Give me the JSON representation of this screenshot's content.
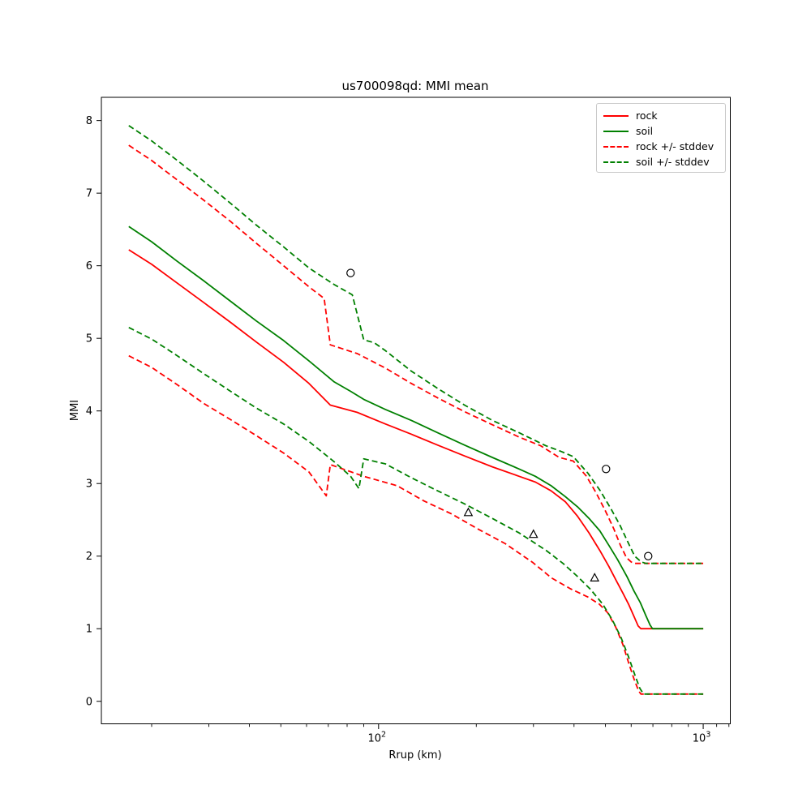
{
  "chart_data": {
    "type": "line",
    "title": "us700098qd: MMI mean",
    "xlabel": "Rrup (km)",
    "ylabel": "MMI",
    "x_scale": "log",
    "xlim": [
      14,
      1212
    ],
    "ylim": [
      -0.31,
      8.32
    ],
    "grid": false,
    "legend_position": "upper right",
    "y_ticks": [
      0,
      1,
      2,
      3,
      4,
      5,
      6,
      7,
      8
    ],
    "x_major_ticks": [
      {
        "value": 100,
        "base": "10",
        "exp": "2"
      },
      {
        "value": 1000,
        "base": "10",
        "exp": "3"
      }
    ],
    "x_minor_ticks": [
      20,
      30,
      40,
      50,
      60,
      70,
      80,
      90,
      200,
      300,
      400,
      500,
      600,
      700,
      800,
      900,
      1100,
      1200
    ],
    "series": [
      {
        "name": "rock",
        "label": "rock",
        "color": "#ff0000",
        "dash": false,
        "points": [
          [
            17,
            6.22
          ],
          [
            20,
            6.02
          ],
          [
            24,
            5.76
          ],
          [
            29,
            5.49
          ],
          [
            35,
            5.22
          ],
          [
            42,
            4.95
          ],
          [
            51,
            4.67
          ],
          [
            61,
            4.38
          ],
          [
            71,
            4.08
          ],
          [
            86,
            3.98
          ],
          [
            105,
            3.82
          ],
          [
            126,
            3.68
          ],
          [
            152,
            3.53
          ],
          [
            184,
            3.38
          ],
          [
            224,
            3.23
          ],
          [
            271,
            3.1
          ],
          [
            304,
            3.02
          ],
          [
            340,
            2.9
          ],
          [
            376,
            2.75
          ],
          [
            410,
            2.55
          ],
          [
            445,
            2.32
          ],
          [
            480,
            2.08
          ],
          [
            512,
            1.86
          ],
          [
            540,
            1.66
          ],
          [
            566,
            1.49
          ],
          [
            590,
            1.33
          ],
          [
            612,
            1.17
          ],
          [
            630,
            1.04
          ],
          [
            643,
            1.0
          ],
          [
            1000,
            1.0
          ]
        ]
      },
      {
        "name": "soil",
        "label": "soil",
        "color": "#008000",
        "dash": false,
        "points": [
          [
            17,
            6.54
          ],
          [
            20,
            6.33
          ],
          [
            24,
            6.06
          ],
          [
            29,
            5.79
          ],
          [
            35,
            5.51
          ],
          [
            42,
            5.24
          ],
          [
            51,
            4.97
          ],
          [
            61,
            4.69
          ],
          [
            73,
            4.4
          ],
          [
            82,
            4.27
          ],
          [
            90,
            4.16
          ],
          [
            105,
            4.02
          ],
          [
            126,
            3.87
          ],
          [
            152,
            3.7
          ],
          [
            184,
            3.53
          ],
          [
            224,
            3.36
          ],
          [
            271,
            3.2
          ],
          [
            304,
            3.1
          ],
          [
            340,
            2.97
          ],
          [
            376,
            2.82
          ],
          [
            410,
            2.68
          ],
          [
            445,
            2.52
          ],
          [
            480,
            2.35
          ],
          [
            512,
            2.15
          ],
          [
            545,
            1.95
          ],
          [
            582,
            1.72
          ],
          [
            612,
            1.52
          ],
          [
            640,
            1.36
          ],
          [
            666,
            1.18
          ],
          [
            686,
            1.05
          ],
          [
            698,
            1.0
          ],
          [
            1000,
            1.0
          ]
        ]
      },
      {
        "name": "rock-plus-stddev",
        "label": "rock +/- stddev",
        "color": "#ff0000",
        "dash": true,
        "points": [
          [
            17,
            7.66
          ],
          [
            20,
            7.45
          ],
          [
            24,
            7.18
          ],
          [
            29,
            6.9
          ],
          [
            35,
            6.61
          ],
          [
            42,
            6.31
          ],
          [
            51,
            6.0
          ],
          [
            61,
            5.71
          ],
          [
            68,
            5.55
          ],
          [
            71,
            4.91
          ],
          [
            86,
            4.79
          ],
          [
            105,
            4.59
          ],
          [
            126,
            4.38
          ],
          [
            152,
            4.18
          ],
          [
            184,
            3.99
          ],
          [
            224,
            3.81
          ],
          [
            271,
            3.64
          ],
          [
            316,
            3.52
          ],
          [
            360,
            3.36
          ],
          [
            398,
            3.31
          ],
          [
            437,
            3.1
          ],
          [
            468,
            2.87
          ],
          [
            500,
            2.62
          ],
          [
            530,
            2.38
          ],
          [
            556,
            2.15
          ],
          [
            580,
            1.98
          ],
          [
            600,
            1.92
          ],
          [
            614,
            1.9
          ],
          [
            1000,
            1.9
          ]
        ]
      },
      {
        "name": "rock-minus-stddev",
        "label": "rock +/- stddev",
        "color": "#ff0000",
        "dash": true,
        "points": [
          [
            17,
            4.76
          ],
          [
            20,
            4.6
          ],
          [
            24,
            4.36
          ],
          [
            29,
            4.1
          ],
          [
            35,
            3.88
          ],
          [
            42,
            3.66
          ],
          [
            51,
            3.42
          ],
          [
            61,
            3.16
          ],
          [
            69,
            2.83
          ],
          [
            71,
            3.26
          ],
          [
            90,
            3.1
          ],
          [
            114,
            2.97
          ],
          [
            138,
            2.76
          ],
          [
            168,
            2.58
          ],
          [
            203,
            2.37
          ],
          [
            246,
            2.17
          ],
          [
            299,
            1.91
          ],
          [
            341,
            1.7
          ],
          [
            390,
            1.55
          ],
          [
            440,
            1.44
          ],
          [
            478,
            1.34
          ],
          [
            508,
            1.22
          ],
          [
            538,
            1.02
          ],
          [
            566,
            0.78
          ],
          [
            590,
            0.52
          ],
          [
            613,
            0.3
          ],
          [
            633,
            0.14
          ],
          [
            643,
            0.1
          ],
          [
            1000,
            0.1
          ]
        ]
      },
      {
        "name": "soil-plus-stddev",
        "label": "soil +/- stddev",
        "color": "#008000",
        "dash": true,
        "points": [
          [
            17,
            7.93
          ],
          [
            20,
            7.72
          ],
          [
            24,
            7.45
          ],
          [
            29,
            7.16
          ],
          [
            35,
            6.86
          ],
          [
            42,
            6.56
          ],
          [
            51,
            6.26
          ],
          [
            61,
            5.97
          ],
          [
            73,
            5.74
          ],
          [
            83,
            5.6
          ],
          [
            90,
            4.98
          ],
          [
            97,
            4.94
          ],
          [
            105,
            4.83
          ],
          [
            126,
            4.55
          ],
          [
            152,
            4.31
          ],
          [
            184,
            4.08
          ],
          [
            224,
            3.87
          ],
          [
            271,
            3.7
          ],
          [
            328,
            3.52
          ],
          [
            366,
            3.44
          ],
          [
            398,
            3.37
          ],
          [
            442,
            3.14
          ],
          [
            482,
            2.9
          ],
          [
            520,
            2.65
          ],
          [
            555,
            2.42
          ],
          [
            585,
            2.2
          ],
          [
            615,
            2.0
          ],
          [
            645,
            1.92
          ],
          [
            666,
            1.9
          ],
          [
            1000,
            1.9
          ]
        ]
      },
      {
        "name": "soil-minus-stddev",
        "label": "soil +/- stddev",
        "color": "#008000",
        "dash": true,
        "points": [
          [
            17,
            5.15
          ],
          [
            20,
            4.99
          ],
          [
            24,
            4.76
          ],
          [
            29,
            4.51
          ],
          [
            35,
            4.27
          ],
          [
            42,
            4.04
          ],
          [
            51,
            3.82
          ],
          [
            61,
            3.58
          ],
          [
            73,
            3.3
          ],
          [
            82,
            3.1
          ],
          [
            87,
            2.93
          ],
          [
            90,
            3.34
          ],
          [
            105,
            3.27
          ],
          [
            126,
            3.08
          ],
          [
            152,
            2.9
          ],
          [
            184,
            2.72
          ],
          [
            224,
            2.52
          ],
          [
            271,
            2.32
          ],
          [
            328,
            2.08
          ],
          [
            370,
            1.9
          ],
          [
            410,
            1.72
          ],
          [
            450,
            1.54
          ],
          [
            490,
            1.34
          ],
          [
            525,
            1.12
          ],
          [
            558,
            0.88
          ],
          [
            588,
            0.62
          ],
          [
            615,
            0.37
          ],
          [
            638,
            0.18
          ],
          [
            655,
            0.1
          ],
          [
            1000,
            0.1
          ]
        ]
      }
    ],
    "scatter": [
      {
        "name": "circle-observations",
        "marker": "circle",
        "color": "#000000",
        "points": [
          [
            82,
            5.9
          ],
          [
            502,
            3.2
          ],
          [
            677,
            2.0
          ]
        ]
      },
      {
        "name": "triangle-observations",
        "marker": "triangle",
        "color": "#000000",
        "points": [
          [
            189,
            2.6
          ],
          [
            300,
            2.3
          ],
          [
            463,
            1.7
          ]
        ]
      }
    ],
    "legend_items": [
      {
        "label": "rock",
        "color": "#ff0000",
        "dash": false
      },
      {
        "label": "soil",
        "color": "#008000",
        "dash": false
      },
      {
        "label": "rock +/- stddev",
        "color": "#ff0000",
        "dash": true
      },
      {
        "label": "soil +/- stddev",
        "color": "#008000",
        "dash": true
      }
    ]
  }
}
